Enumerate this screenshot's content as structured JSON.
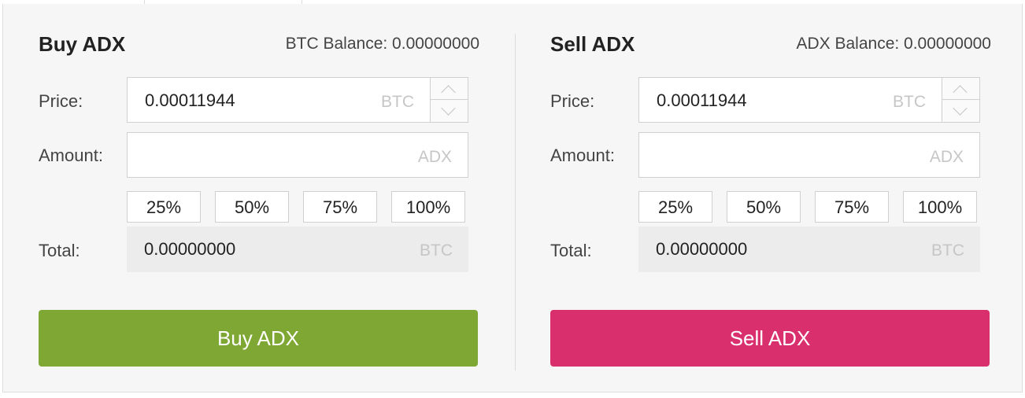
{
  "buy": {
    "title": "Buy ADX",
    "balance_label": "BTC Balance: 0.00000000",
    "price_label": "Price:",
    "price_value": "0.00011944",
    "price_unit": "BTC",
    "amount_label": "Amount:",
    "amount_value": "",
    "amount_unit": "ADX",
    "percent_options": [
      "25%",
      "50%",
      "75%",
      "100%"
    ],
    "total_label": "Total:",
    "total_value": "0.00000000",
    "total_unit": "BTC",
    "button_label": "Buy ADX"
  },
  "sell": {
    "title": "Sell ADX",
    "balance_label": "ADX Balance: 0.00000000",
    "price_label": "Price:",
    "price_value": "0.00011944",
    "price_unit": "BTC",
    "amount_label": "Amount:",
    "amount_value": "",
    "amount_unit": "ADX",
    "percent_options": [
      "25%",
      "50%",
      "75%",
      "100%"
    ],
    "total_label": "Total:",
    "total_value": "0.00000000",
    "total_unit": "BTC",
    "button_label": "Sell ADX"
  },
  "colors": {
    "buy_accent": "#7ea733",
    "sell_accent": "#d9306d",
    "panel_bg": "#f6f6f6"
  },
  "icons": {
    "spinner_up": "chevron-up-icon",
    "spinner_down": "chevron-down-icon"
  }
}
